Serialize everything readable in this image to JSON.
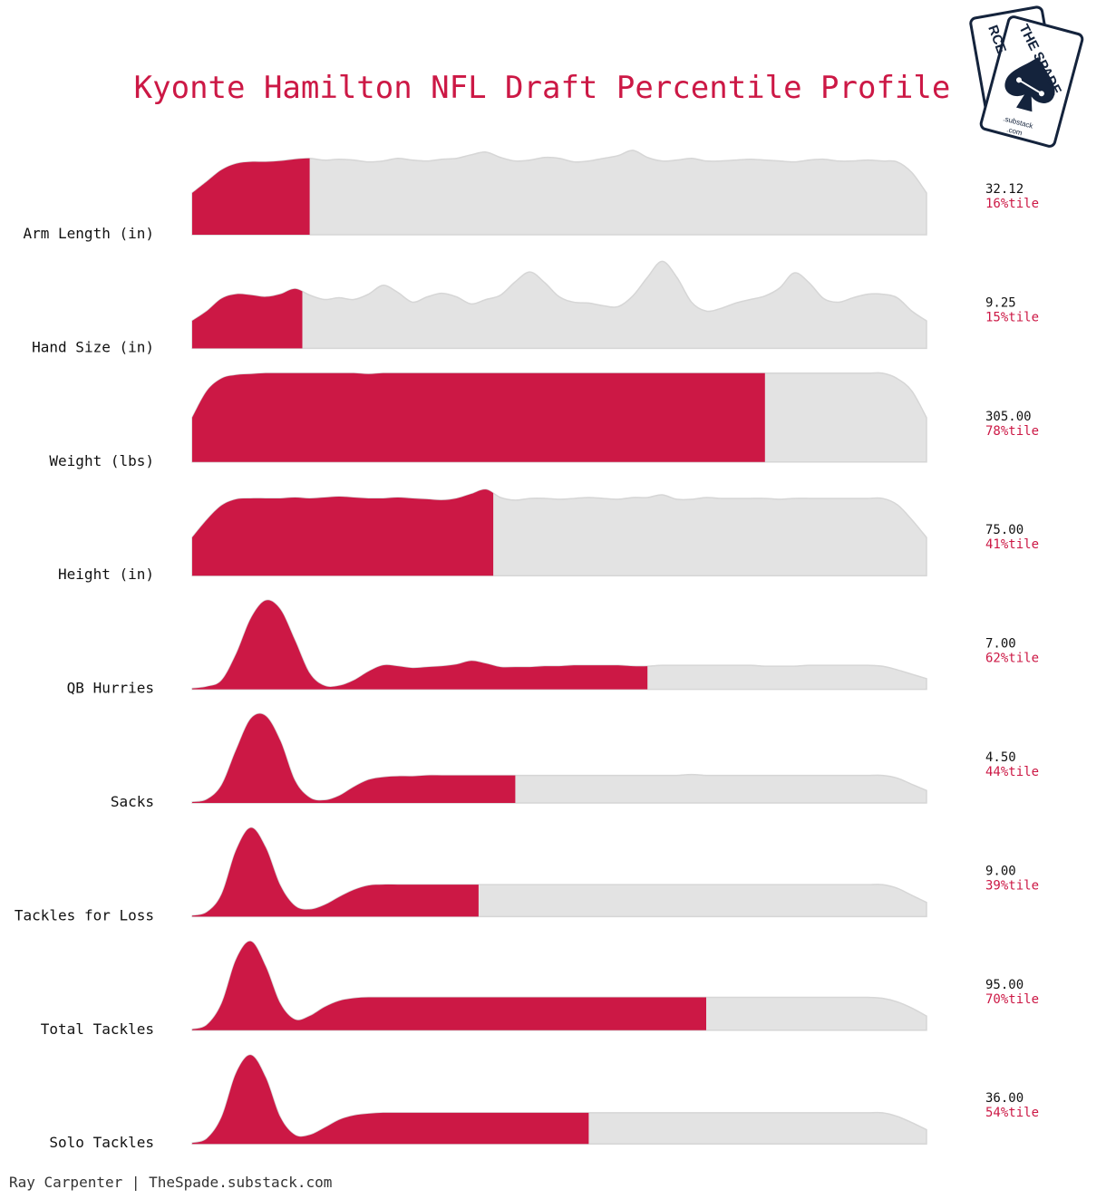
{
  "chart_data": {
    "type": "area",
    "title": "Kyonte Hamilton NFL Draft Percentile Profile",
    "colors": {
      "highlight": "#CC1845",
      "background": "#E3E3E3",
      "outline": "#D6D6D6"
    },
    "rows": [
      {
        "label": "Arm Length (in)",
        "value": "32.12",
        "percentile": 16,
        "percentile_label": "16%tile",
        "density": [
          0.47,
          0.6,
          0.73,
          0.8,
          0.82,
          0.82,
          0.83,
          0.85,
          0.86,
          0.84,
          0.85,
          0.84,
          0.82,
          0.83,
          0.86,
          0.84,
          0.83,
          0.85,
          0.86,
          0.9,
          0.93,
          0.87,
          0.83,
          0.84,
          0.87,
          0.86,
          0.82,
          0.83,
          0.86,
          0.89,
          0.95,
          0.87,
          0.83,
          0.84,
          0.86,
          0.83,
          0.83,
          0.84,
          0.85,
          0.84,
          0.83,
          0.82,
          0.84,
          0.85,
          0.83,
          0.83,
          0.84,
          0.83,
          0.82,
          0.7,
          0.47
        ]
      },
      {
        "label": "Hand Size (in)",
        "value": "9.25",
        "percentile": 15,
        "percentile_label": "15%tile",
        "density": [
          0.31,
          0.42,
          0.56,
          0.61,
          0.6,
          0.58,
          0.61,
          0.67,
          0.6,
          0.55,
          0.57,
          0.55,
          0.61,
          0.71,
          0.63,
          0.52,
          0.58,
          0.62,
          0.58,
          0.5,
          0.55,
          0.6,
          0.75,
          0.86,
          0.74,
          0.58,
          0.52,
          0.51,
          0.48,
          0.47,
          0.59,
          0.8,
          0.98,
          0.8,
          0.52,
          0.42,
          0.45,
          0.51,
          0.55,
          0.59,
          0.68,
          0.85,
          0.74,
          0.56,
          0.52,
          0.57,
          0.61,
          0.61,
          0.57,
          0.42,
          0.31
        ]
      },
      {
        "label": "Weight (lbs)",
        "value": "305.00",
        "percentile": 78,
        "percentile_label": "78%tile",
        "density": [
          0.5,
          0.8,
          0.94,
          0.98,
          0.99,
          1.0,
          1.0,
          1.0,
          1.0,
          1.0,
          1.0,
          1.0,
          0.99,
          1.0,
          1.0,
          1.0,
          1.0,
          1.0,
          1.0,
          1.0,
          1.0,
          1.0,
          1.0,
          1.0,
          1.0,
          1.0,
          1.0,
          1.0,
          1.0,
          1.0,
          1.0,
          1.0,
          1.0,
          1.0,
          1.0,
          1.0,
          1.0,
          1.0,
          1.0,
          1.0,
          1.0,
          1.0,
          1.0,
          1.0,
          1.0,
          1.0,
          1.0,
          1.0,
          0.94,
          0.8,
          0.5
        ]
      },
      {
        "label": "Height (in)",
        "value": "75.00",
        "percentile": 41,
        "percentile_label": "41%tile",
        "density": [
          0.43,
          0.63,
          0.79,
          0.86,
          0.87,
          0.87,
          0.87,
          0.88,
          0.87,
          0.88,
          0.89,
          0.88,
          0.87,
          0.87,
          0.88,
          0.87,
          0.86,
          0.85,
          0.87,
          0.92,
          0.97,
          0.88,
          0.85,
          0.87,
          0.87,
          0.86,
          0.87,
          0.88,
          0.87,
          0.86,
          0.88,
          0.88,
          0.91,
          0.86,
          0.86,
          0.88,
          0.87,
          0.87,
          0.87,
          0.87,
          0.86,
          0.87,
          0.87,
          0.87,
          0.87,
          0.87,
          0.87,
          0.87,
          0.8,
          0.63,
          0.43
        ]
      },
      {
        "label": "QB Hurries",
        "value": "7.00",
        "percentile": 62,
        "percentile_label": "62%tile",
        "density": [
          0.01,
          0.03,
          0.1,
          0.4,
          0.8,
          1.0,
          0.9,
          0.55,
          0.18,
          0.04,
          0.04,
          0.1,
          0.2,
          0.27,
          0.26,
          0.24,
          0.25,
          0.26,
          0.28,
          0.32,
          0.29,
          0.25,
          0.25,
          0.25,
          0.26,
          0.26,
          0.27,
          0.27,
          0.27,
          0.27,
          0.26,
          0.26,
          0.27,
          0.27,
          0.27,
          0.27,
          0.27,
          0.27,
          0.27,
          0.26,
          0.26,
          0.26,
          0.27,
          0.27,
          0.27,
          0.27,
          0.27,
          0.26,
          0.22,
          0.17,
          0.12
        ]
      },
      {
        "label": "Sacks",
        "value": "4.50",
        "percentile": 44,
        "percentile_label": "44%tile",
        "density": [
          0.01,
          0.04,
          0.2,
          0.6,
          0.95,
          0.98,
          0.7,
          0.25,
          0.06,
          0.03,
          0.08,
          0.18,
          0.26,
          0.29,
          0.3,
          0.3,
          0.31,
          0.31,
          0.31,
          0.31,
          0.31,
          0.31,
          0.31,
          0.31,
          0.31,
          0.31,
          0.31,
          0.31,
          0.31,
          0.31,
          0.31,
          0.31,
          0.31,
          0.31,
          0.32,
          0.31,
          0.31,
          0.31,
          0.31,
          0.31,
          0.31,
          0.31,
          0.31,
          0.31,
          0.31,
          0.31,
          0.31,
          0.31,
          0.28,
          0.21,
          0.14
        ]
      },
      {
        "label": "Tackles for Loss",
        "value": "9.00",
        "percentile": 39,
        "percentile_label": "39%tile",
        "density": [
          0.01,
          0.05,
          0.25,
          0.75,
          1.0,
          0.78,
          0.35,
          0.12,
          0.08,
          0.13,
          0.22,
          0.3,
          0.35,
          0.36,
          0.36,
          0.36,
          0.36,
          0.36,
          0.36,
          0.36,
          0.36,
          0.36,
          0.36,
          0.36,
          0.36,
          0.36,
          0.36,
          0.36,
          0.36,
          0.36,
          0.36,
          0.36,
          0.36,
          0.36,
          0.36,
          0.36,
          0.36,
          0.36,
          0.36,
          0.36,
          0.36,
          0.36,
          0.36,
          0.36,
          0.36,
          0.36,
          0.36,
          0.36,
          0.32,
          0.24,
          0.16
        ]
      },
      {
        "label": "Total Tackles",
        "value": "95.00",
        "percentile": 70,
        "percentile_label": "70%tile",
        "density": [
          0.01,
          0.06,
          0.3,
          0.8,
          1.0,
          0.72,
          0.3,
          0.12,
          0.16,
          0.26,
          0.33,
          0.36,
          0.37,
          0.37,
          0.37,
          0.37,
          0.37,
          0.37,
          0.37,
          0.37,
          0.37,
          0.37,
          0.37,
          0.37,
          0.37,
          0.37,
          0.37,
          0.37,
          0.37,
          0.37,
          0.37,
          0.37,
          0.37,
          0.37,
          0.37,
          0.37,
          0.37,
          0.37,
          0.37,
          0.37,
          0.37,
          0.37,
          0.37,
          0.37,
          0.37,
          0.37,
          0.37,
          0.36,
          0.32,
          0.25,
          0.16
        ]
      },
      {
        "label": "Solo Tackles",
        "value": "36.00",
        "percentile": 54,
        "percentile_label": "54%tile",
        "density": [
          0.01,
          0.06,
          0.3,
          0.8,
          1.0,
          0.75,
          0.3,
          0.1,
          0.1,
          0.18,
          0.27,
          0.32,
          0.34,
          0.35,
          0.35,
          0.35,
          0.35,
          0.35,
          0.35,
          0.35,
          0.35,
          0.35,
          0.35,
          0.35,
          0.35,
          0.35,
          0.35,
          0.35,
          0.35,
          0.35,
          0.35,
          0.35,
          0.35,
          0.35,
          0.35,
          0.35,
          0.35,
          0.35,
          0.35,
          0.35,
          0.35,
          0.35,
          0.35,
          0.35,
          0.35,
          0.35,
          0.35,
          0.35,
          0.31,
          0.24,
          0.16
        ]
      }
    ]
  },
  "footer": {
    "credit": "Ray Carpenter | TheSpade.substack.com"
  },
  "logo": {
    "name": "the-spade-logo",
    "back_card_letters": "RCE",
    "front_card_letters": "THE SPADE",
    "substack": ".substack",
    "com": ".com"
  }
}
